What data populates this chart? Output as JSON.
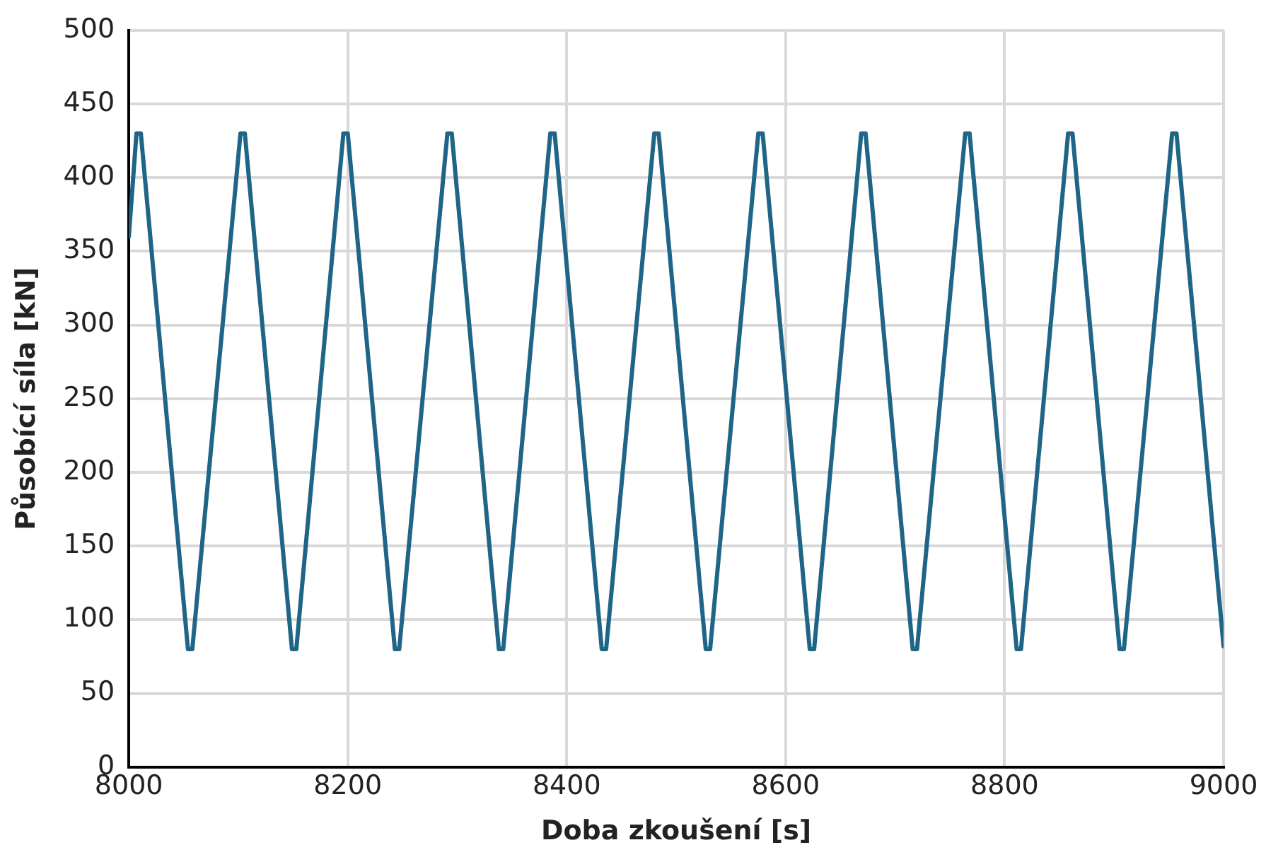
{
  "chart_data": {
    "type": "line",
    "xlabel": "Doba zkoušení [s]",
    "ylabel": "Působící síla [kN]",
    "x": [
      8000,
      8007,
      8011,
      8054,
      8058,
      8102,
      8106,
      8149,
      8153,
      8196,
      8200,
      8243,
      8247,
      8291,
      8295,
      8338,
      8342,
      8385,
      8389,
      8432,
      8436,
      8480,
      8484,
      8527,
      8531,
      8575,
      8579,
      8622,
      8626,
      8669,
      8673,
      8716,
      8720,
      8764,
      8768,
      8811,
      8815,
      8858,
      8862,
      8905,
      8909,
      8953,
      8957,
      9000
    ],
    "series": [
      {
        "color": "#1f6587",
        "values": [
          360,
          430,
          430,
          80,
          80,
          430,
          430,
          80,
          80,
          430,
          430,
          80,
          80,
          430,
          430,
          80,
          80,
          430,
          430,
          80,
          80,
          430,
          430,
          80,
          80,
          430,
          430,
          80,
          80,
          430,
          430,
          80,
          80,
          430,
          430,
          80,
          80,
          430,
          430,
          80,
          80,
          430,
          430,
          82
        ]
      }
    ],
    "xlim": [
      8000,
      9000
    ],
    "xticks": [
      8000,
      8200,
      8400,
      8600,
      8800,
      9000
    ],
    "ylim": [
      0,
      500
    ],
    "yticks": [
      0,
      50,
      100,
      150,
      200,
      250,
      300,
      350,
      400,
      450,
      500
    ],
    "grid": true,
    "legend": false,
    "marker": "none",
    "line_style": "solid"
  }
}
